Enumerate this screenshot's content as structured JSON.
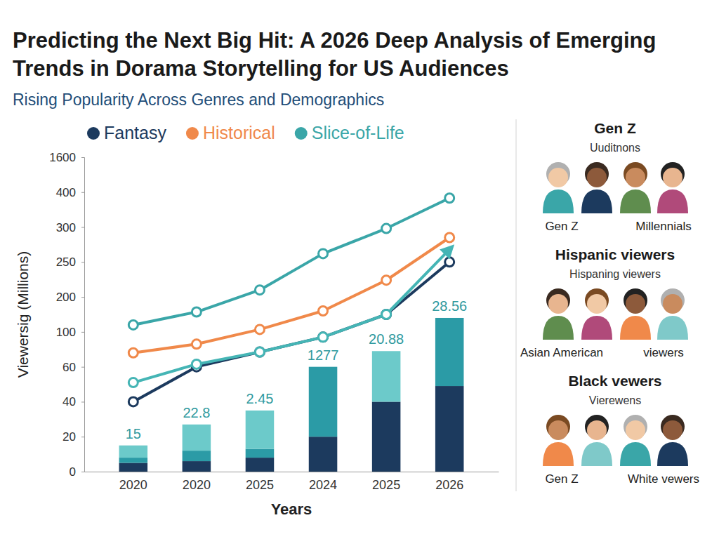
{
  "chart_data": {
    "type": "line",
    "title": "Predicting the Next Big Hit: A 2026 Deep Analysis of Emerging Trends in Dorama Storytelling for US Audiences",
    "subtitle": "Rising Popularity Across Genres and Demographics",
    "x_label": "Years",
    "y_label": "Viewersig (Millions)",
    "categories": [
      "2020",
      "2020",
      "2025",
      "2024",
      "2025",
      "2026"
    ],
    "ylim": [
      0,
      1600
    ],
    "yticks": [
      0,
      20,
      40,
      60,
      100,
      200,
      250,
      300,
      400,
      1600
    ],
    "grid": false,
    "legend": "top",
    "stacked": true,
    "series": [
      {
        "name": "Fantasy",
        "type": "line",
        "color": "#1c3a5e",
        "marker": "circle",
        "line_style": "solid",
        "values": [
          40,
          60,
          77,
          94,
          150,
          250
        ]
      },
      {
        "name": "Historical",
        "type": "line",
        "color": "#f0894a",
        "marker": "circle",
        "line_style": "solid",
        "values": [
          76,
          86,
          107,
          160,
          224,
          285
        ]
      },
      {
        "name": "Slice-of-Life",
        "type": "line",
        "color": "#3aa6a8",
        "marker": "circle",
        "line_style": "solid",
        "values": [
          120,
          157,
          210,
          262,
          298,
          383
        ]
      },
      {
        "type": "line",
        "color": "#45b5b5",
        "marker": "circle",
        "line_style": "arrow",
        "values": [
          51,
          63,
          77,
          94,
          150,
          268
        ]
      },
      {
        "type": "bar",
        "color": "#1c3a5e",
        "values": [
          5,
          6,
          8,
          20,
          40,
          49
        ]
      },
      {
        "type": "bar",
        "color": "#2b9ba6",
        "values": [
          3,
          6,
          5,
          40,
          0,
          91
        ]
      },
      {
        "type": "bar",
        "color": "#6ccaca",
        "values": [
          7,
          15,
          22,
          0,
          38,
          0
        ]
      }
    ],
    "annotations": [
      "15",
      "22.8",
      "2.45",
      "1277",
      "20.88",
      "28.56"
    ]
  },
  "demographics": {
    "groups": [
      {
        "heading": "Gen Z",
        "subheading": "Uuditnons",
        "captions": [
          "Gen Z",
          "Millennials"
        ]
      },
      {
        "heading": "Hispanic viewers",
        "subheading": "Hispaning viewers",
        "captions": [
          "Asian American",
          "viewers"
        ]
      },
      {
        "heading": "Black vewers",
        "subheading": "Vierewens",
        "captions": [
          "Gen Z",
          "White vewers"
        ]
      }
    ]
  }
}
